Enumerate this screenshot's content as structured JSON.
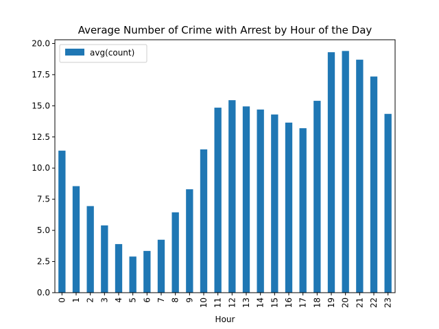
{
  "chart_data": {
    "type": "bar",
    "title": "Average Number of Crime with Arrest by Hour of the Day",
    "xlabel": "Hour",
    "ylabel": "",
    "categories": [
      "0",
      "1",
      "2",
      "3",
      "4",
      "5",
      "6",
      "7",
      "8",
      "9",
      "10",
      "11",
      "12",
      "13",
      "14",
      "15",
      "16",
      "17",
      "18",
      "19",
      "20",
      "21",
      "22",
      "23"
    ],
    "series": [
      {
        "name": "avg(count)",
        "color": "#1f77b4",
        "values": [
          11.4,
          8.55,
          6.95,
          5.4,
          3.9,
          2.9,
          3.35,
          4.25,
          6.45,
          8.3,
          11.5,
          14.85,
          15.45,
          14.95,
          14.7,
          14.3,
          13.65,
          13.2,
          15.4,
          19.3,
          19.4,
          18.7,
          17.35,
          14.35
        ]
      }
    ],
    "ylim": [
      0,
      20.3
    ],
    "yticks": [
      0.0,
      2.5,
      5.0,
      7.5,
      10.0,
      12.5,
      15.0,
      17.5,
      20.0
    ],
    "ytick_labels": [
      "0.0",
      "2.5",
      "5.0",
      "7.5",
      "10.0",
      "12.5",
      "15.0",
      "17.5",
      "20.0"
    ],
    "legend_position": "top-left",
    "grid": false
  }
}
